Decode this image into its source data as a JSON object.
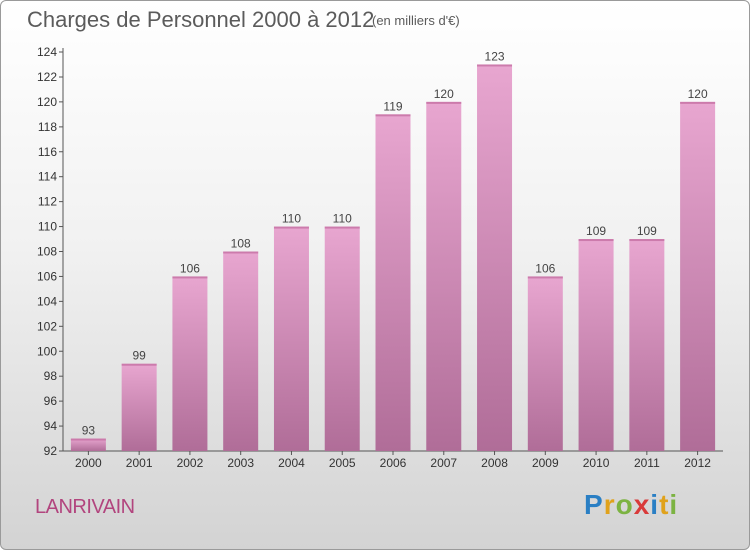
{
  "title": "Charges de Personnel 2000 à 2012",
  "subtitle": "(en milliers d'€)",
  "commune": "LANRIVAIN",
  "logo": {
    "letters": [
      {
        "ch": "P",
        "color": "#2a7fc4"
      },
      {
        "ch": "r",
        "color": "#e0a21c"
      },
      {
        "ch": "o",
        "color": "#7cb342"
      },
      {
        "ch": "x",
        "color": "#d93a3a"
      },
      {
        "ch": "i",
        "color": "#2a7fc4"
      },
      {
        "ch": "t",
        "color": "#e0a21c"
      },
      {
        "ch": "i",
        "color": "#7cb342"
      }
    ]
  },
  "chart_data": {
    "type": "bar",
    "categories": [
      "2000",
      "2001",
      "2002",
      "2003",
      "2004",
      "2005",
      "2006",
      "2007",
      "2008",
      "2009",
      "2010",
      "2011",
      "2012"
    ],
    "values": [
      93,
      99,
      106,
      108,
      110,
      110,
      119,
      120,
      123,
      106,
      109,
      109,
      120
    ],
    "ylim": [
      92,
      124
    ],
    "yticks": [
      92,
      94,
      96,
      98,
      100,
      102,
      104,
      106,
      108,
      110,
      112,
      114,
      116,
      118,
      120,
      122,
      124
    ],
    "grid": false,
    "bar_color_top": "#e8a6d0",
    "bar_color_bottom": "#b06d98"
  }
}
